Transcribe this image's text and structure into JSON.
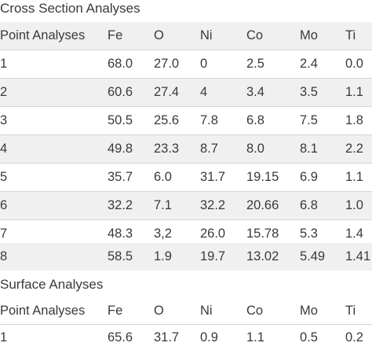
{
  "cross_section": {
    "title": "Cross Section Analyses",
    "headers": [
      "Point Analyses",
      "Fe",
      "O",
      "Ni",
      "Co",
      "Mo",
      "Ti"
    ],
    "rows": [
      [
        "1",
        "68.0",
        "27.0",
        "0",
        "2.5",
        "2.4",
        "0.0"
      ],
      [
        "2",
        "60.6",
        "27.4",
        "4",
        "3.4",
        "3.5",
        "1.1"
      ],
      [
        "3",
        "50.5",
        "25.6",
        "7.8",
        "6.8",
        "7.5",
        "1.8"
      ],
      [
        "4",
        "49.8",
        "23.3",
        "8.7",
        "8.0",
        "8.1",
        "2.2"
      ],
      [
        "5",
        "35.7",
        "6.0",
        "31.7",
        "19.15",
        "6.9",
        "1.1"
      ],
      [
        "6",
        "32.2",
        "7.1",
        "32.2",
        "20.66",
        "6.8",
        "1.0"
      ],
      [
        "7",
        "48.3",
        "3,2",
        "26.0",
        "15.78",
        "5.3",
        "1.4"
      ],
      [
        "8",
        "58.5",
        "1.9",
        "19.7",
        "13.02",
        "5.49",
        "1.41"
      ]
    ]
  },
  "surface": {
    "title": "Surface Analyses",
    "headers": [
      "Point Analyses",
      "Fe",
      "O",
      "Ni",
      "Co",
      "Mo",
      "Ti"
    ],
    "rows": [
      [
        "1",
        "65.6",
        "31.7",
        "0.9",
        "1.1",
        "0.5",
        "0.2"
      ]
    ]
  }
}
